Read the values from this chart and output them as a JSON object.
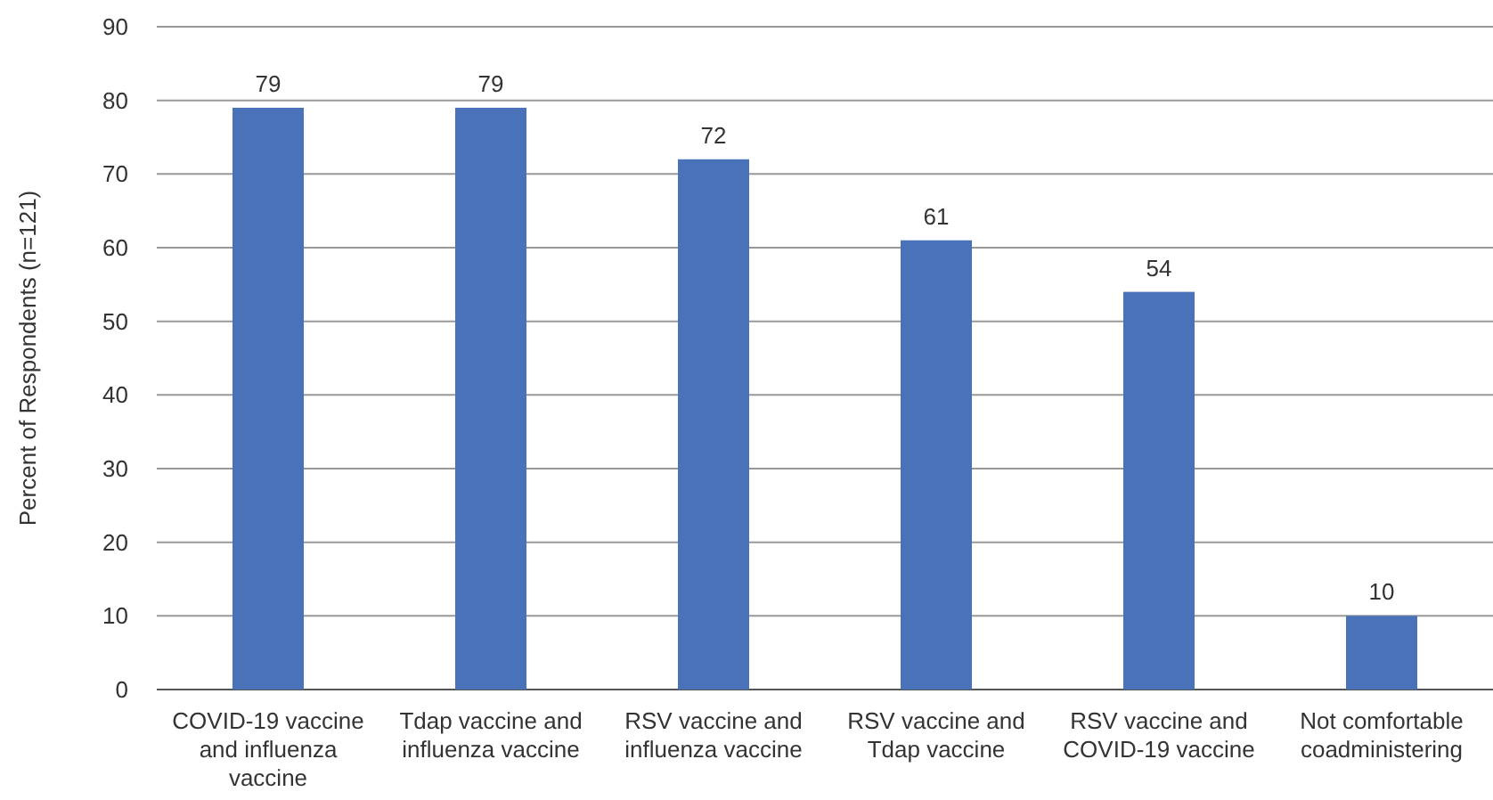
{
  "chart_data": {
    "type": "bar",
    "ylabel": "Percent of Respondents (n=121)",
    "categories": [
      "COVID-19 vaccine and influenza vaccine",
      "Tdap vaccine and influenza vaccine",
      "RSV vaccine and influenza vaccine",
      "RSV vaccine and Tdap vaccine",
      "RSV vaccine and COVID-19 vaccine",
      "Not comfortable coadministering"
    ],
    "values": [
      79,
      79,
      72,
      61,
      54,
      10
    ],
    "color": "#4a72b8",
    "ylim": [
      0,
      90
    ],
    "yticks": [
      0,
      10,
      20,
      30,
      40,
      50,
      60,
      70,
      80,
      90
    ],
    "grid": "y",
    "data_labels": true
  }
}
